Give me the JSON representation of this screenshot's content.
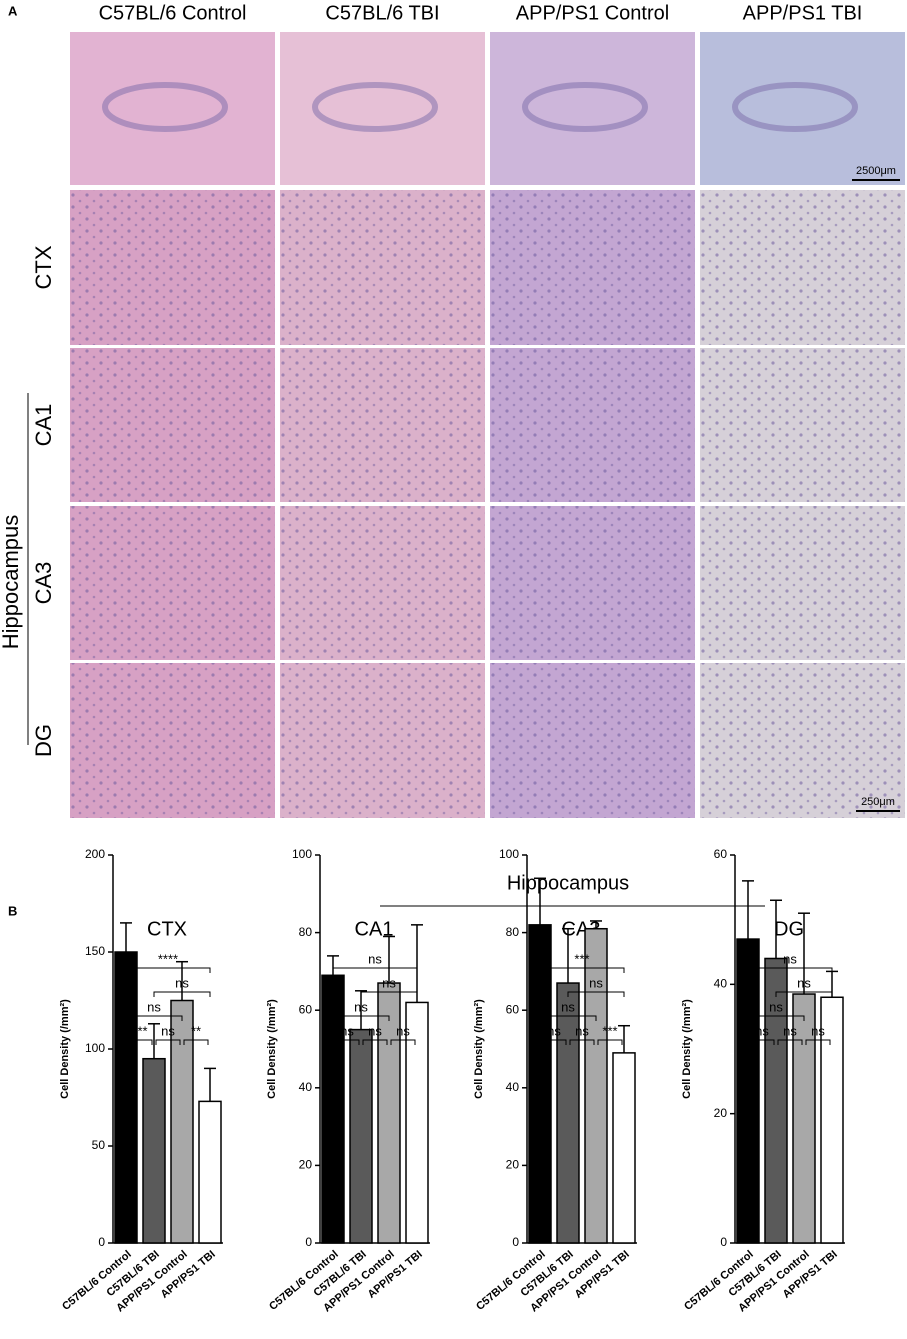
{
  "panel_a": {
    "label": "A",
    "columns": [
      "C57BL/6 Control",
      "C57BL/6 TBI",
      "APP/PS1 Control",
      "APP/PS1 TBI"
    ],
    "rows": [
      "CTX",
      "CA1",
      "CA3",
      "DG"
    ],
    "group": "Hippocampus",
    "scale_bars": [
      "2500μm",
      "250μm"
    ]
  },
  "panel_b": {
    "label": "B",
    "group": "Hippocampus"
  },
  "chart_data": [
    {
      "type": "bar",
      "title": "CTX",
      "ylabel": "Cell Density (/mm²)",
      "categories": [
        "C57BL/6 Control",
        "C57BL/6 TBI",
        "APP/PS1 Control",
        "APP/PS1 TBI"
      ],
      "values": [
        150,
        95,
        125,
        73
      ],
      "errors": [
        15,
        18,
        20,
        17
      ],
      "colors": [
        "#000000",
        "#5a5a5a",
        "#a8a8a8",
        "#ffffff"
      ],
      "ylim": [
        0,
        200
      ],
      "yticks": [
        0,
        50,
        100,
        150,
        200
      ],
      "significance": [
        "****",
        "ns",
        "ns",
        "***",
        "ns",
        "**"
      ]
    },
    {
      "type": "bar",
      "title": "CA1",
      "ylabel": "Cell Density (/mm²)",
      "categories": [
        "C57BL/6 Control",
        "C57BL/6 TBI",
        "APP/PS1 Control",
        "APP/PS1 TBI"
      ],
      "values": [
        69,
        55,
        67,
        62
      ],
      "errors": [
        5,
        10,
        12,
        20
      ],
      "colors": [
        "#000000",
        "#5a5a5a",
        "#a8a8a8",
        "#ffffff"
      ],
      "ylim": [
        0,
        100
      ],
      "yticks": [
        0,
        20,
        40,
        60,
        80,
        100
      ],
      "significance": [
        "ns",
        "ns",
        "ns",
        "ns",
        "ns",
        "ns"
      ]
    },
    {
      "type": "bar",
      "title": "CA3",
      "ylabel": "Cell Density (/mm²)",
      "categories": [
        "C57BL/6 Control",
        "C57BL/6 TBI",
        "APP/PS1 Control",
        "APP/PS1 TBI"
      ],
      "values": [
        82,
        67,
        81,
        49
      ],
      "errors": [
        12,
        14,
        2,
        7
      ],
      "colors": [
        "#000000",
        "#5a5a5a",
        "#a8a8a8",
        "#ffffff"
      ],
      "ylim": [
        0,
        100
      ],
      "yticks": [
        0,
        20,
        40,
        60,
        80,
        100
      ],
      "significance": [
        "***",
        "ns",
        "ns",
        "ns",
        "ns",
        "***"
      ]
    },
    {
      "type": "bar",
      "title": "DG",
      "ylabel": "Cell Density (/mm²)",
      "categories": [
        "C57BL/6 Control",
        "C57BL/6 TBI",
        "APP/PS1 Control",
        "APP/PS1 TBI"
      ],
      "values": [
        47,
        44,
        38.5,
        38
      ],
      "errors": [
        9,
        9,
        12.5,
        4
      ],
      "colors": [
        "#000000",
        "#5a5a5a",
        "#a8a8a8",
        "#ffffff"
      ],
      "ylim": [
        0,
        60
      ],
      "yticks": [
        0,
        20,
        40,
        60
      ],
      "significance": [
        "ns",
        "ns",
        "ns",
        "ns",
        "ns",
        "ns"
      ]
    }
  ]
}
